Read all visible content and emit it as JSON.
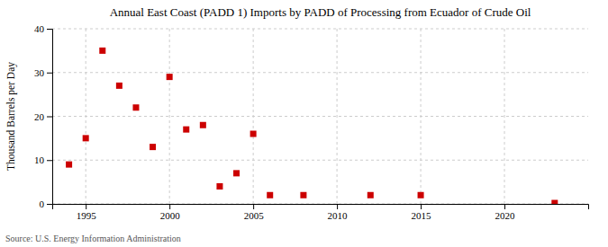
{
  "chart_data": {
    "type": "scatter",
    "title": "Annual East Coast (PADD 1) Imports by PADD of Processing from Ecuador of Crude Oil",
    "ylabel": "Thousand Barrels per Day",
    "source": "Source: U.S. Energy Information Administration",
    "x": [
      1994,
      1995,
      1996,
      1997,
      1998,
      1999,
      2000,
      2001,
      2002,
      2003,
      2004,
      2005,
      2006,
      2008,
      2012,
      2015,
      2023
    ],
    "values": [
      9,
      15,
      35,
      27,
      22,
      13,
      29,
      17,
      18,
      4,
      7,
      16,
      2,
      2,
      2,
      2,
      0.2
    ],
    "color": "#cc0000",
    "marker": "square",
    "xlim": [
      1993,
      2025
    ],
    "ylim": [
      0,
      40
    ],
    "xticks": [
      1995,
      2000,
      2005,
      2010,
      2015,
      2020
    ],
    "yticks": [
      0,
      10,
      20,
      30,
      40
    ],
    "grid": true
  }
}
